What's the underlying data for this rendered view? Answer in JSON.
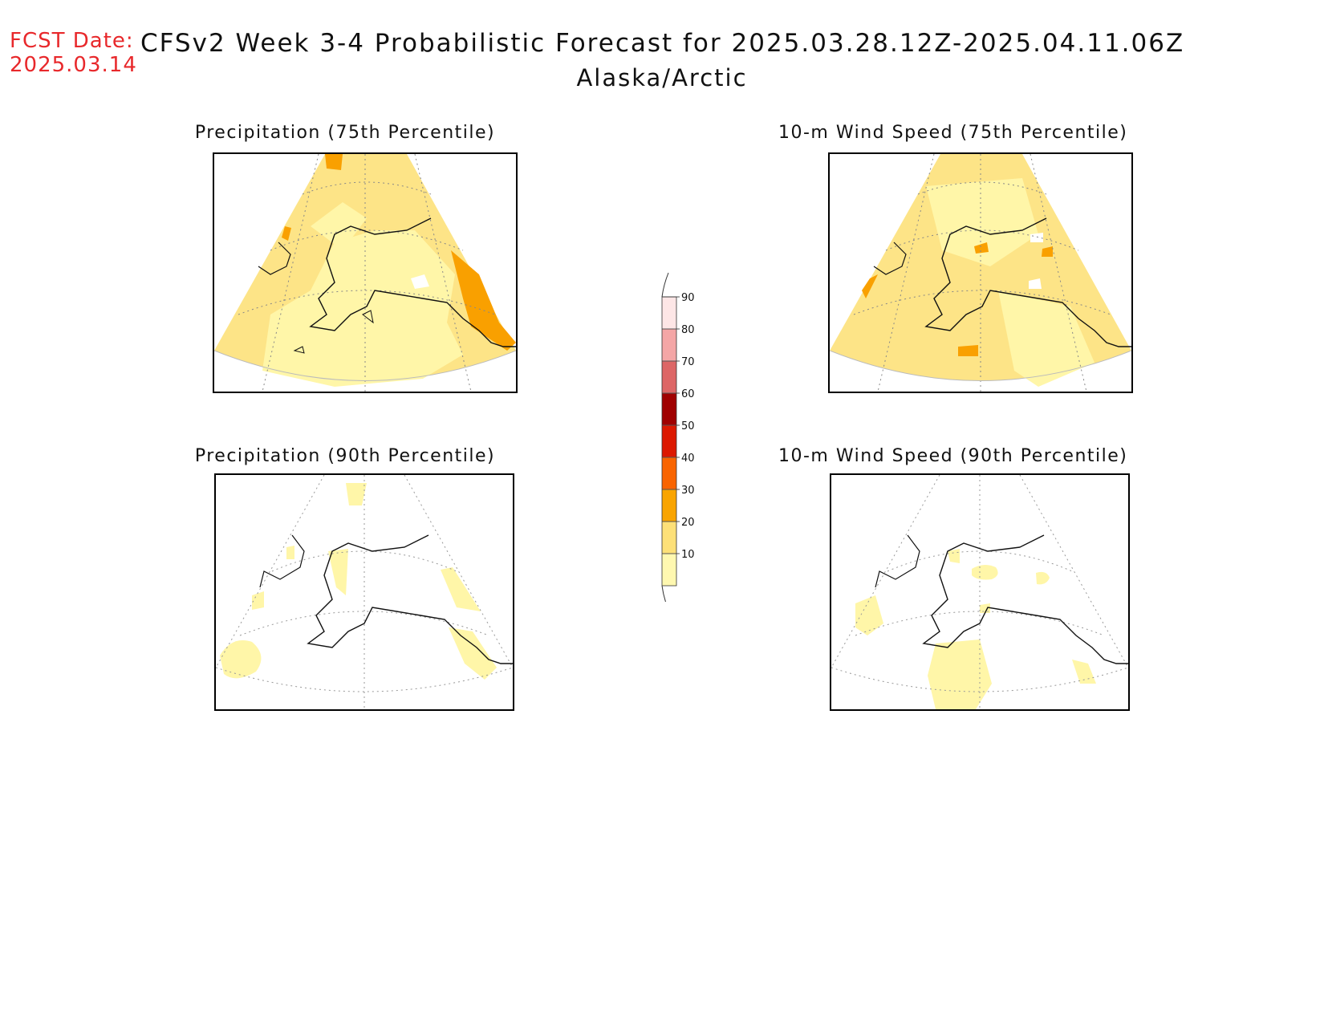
{
  "header": {
    "fcst_label": "FCST Date:",
    "fcst_date": "2025.03.14",
    "title": "CFSv2 Week 3-4 Probabilistic Forecast for 2025.03.28.12Z-2025.04.11.06Z",
    "region": "Alaska/Arctic"
  },
  "panels": [
    {
      "id": "precip75",
      "title": "Precipitation (75th Percentile)"
    },
    {
      "id": "wind75",
      "title": "10-m Wind Speed (75th Percentile)"
    },
    {
      "id": "precip90",
      "title": "Precipitation (90th Percentile)"
    },
    {
      "id": "wind90",
      "title": "10-m Wind Speed (90th Percentile)"
    }
  ],
  "colorbar": {
    "ticks": [
      "10",
      "20",
      "30",
      "40",
      "50",
      "60",
      "70",
      "80",
      "90"
    ],
    "colors": [
      "#fff8b0",
      "#fde078",
      "#f9a400",
      "#f96400",
      "#dc1800",
      "#a00000",
      "#dd6666",
      "#f4a6a6",
      "#fde6e6"
    ]
  }
}
